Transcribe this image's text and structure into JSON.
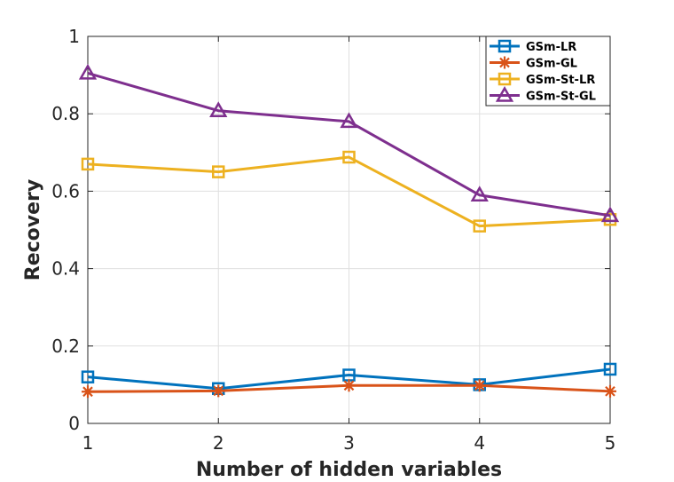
{
  "chart_data": {
    "type": "line",
    "title": "",
    "xlabel": "Number of hidden variables",
    "ylabel": "Recovery",
    "x": [
      1,
      2,
      3,
      4,
      5
    ],
    "xlim": [
      1,
      5
    ],
    "ylim": [
      0,
      1
    ],
    "xticks": [
      "1",
      "2",
      "3",
      "4",
      "5"
    ],
    "yticks": [
      "0",
      "0.2",
      "0.4",
      "0.6",
      "0.8",
      "1"
    ],
    "grid": true,
    "legend_position": "top-right",
    "series": [
      {
        "name": "GSm-LR",
        "color": "#0072BD",
        "marker": "square",
        "values": [
          0.12,
          0.09,
          0.125,
          0.1,
          0.14
        ]
      },
      {
        "name": "GSm-GL",
        "color": "#D95319",
        "marker": "asterisk",
        "values": [
          0.082,
          0.084,
          0.098,
          0.098,
          0.083
        ]
      },
      {
        "name": "GSm-St-LR",
        "color": "#EDB120",
        "marker": "square",
        "values": [
          0.67,
          0.65,
          0.688,
          0.51,
          0.527
        ]
      },
      {
        "name": "GSm-St-GL",
        "color": "#7E2F8E",
        "marker": "triangle",
        "values": [
          0.905,
          0.808,
          0.78,
          0.59,
          0.537
        ]
      }
    ]
  }
}
